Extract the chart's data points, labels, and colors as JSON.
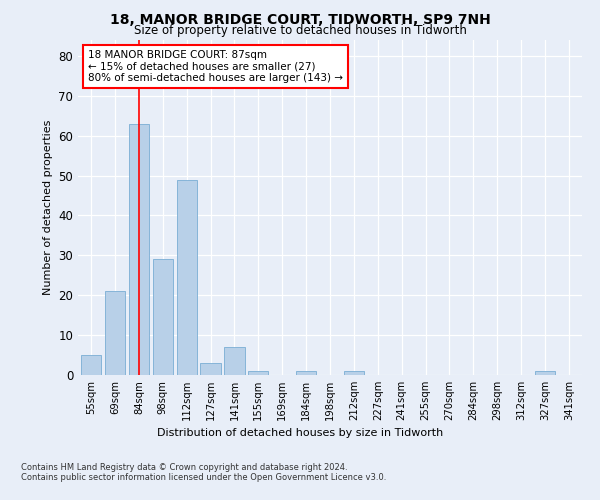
{
  "title": "18, MANOR BRIDGE COURT, TIDWORTH, SP9 7NH",
  "subtitle": "Size of property relative to detached houses in Tidworth",
  "xlabel": "Distribution of detached houses by size in Tidworth",
  "ylabel": "Number of detached properties",
  "categories": [
    "55sqm",
    "69sqm",
    "84sqm",
    "98sqm",
    "112sqm",
    "127sqm",
    "141sqm",
    "155sqm",
    "169sqm",
    "184sqm",
    "198sqm",
    "212sqm",
    "227sqm",
    "241sqm",
    "255sqm",
    "270sqm",
    "284sqm",
    "298sqm",
    "312sqm",
    "327sqm",
    "341sqm"
  ],
  "values": [
    5,
    21,
    63,
    29,
    49,
    3,
    7,
    1,
    0,
    1,
    0,
    1,
    0,
    0,
    0,
    0,
    0,
    0,
    0,
    1,
    0
  ],
  "bar_color": "#b8d0e8",
  "bar_edge_color": "#7aadd4",
  "red_line_x": 2,
  "annotation_text": "18 MANOR BRIDGE COURT: 87sqm\n← 15% of detached houses are smaller (27)\n80% of semi-detached houses are larger (143) →",
  "annotation_box_color": "white",
  "annotation_box_edge_color": "red",
  "ylim": [
    0,
    84
  ],
  "yticks": [
    0,
    10,
    20,
    30,
    40,
    50,
    60,
    70,
    80
  ],
  "footnote": "Contains HM Land Registry data © Crown copyright and database right 2024.\nContains public sector information licensed under the Open Government Licence v3.0.",
  "background_color": "#e8eef8",
  "plot_bg_color": "#e8eef8"
}
